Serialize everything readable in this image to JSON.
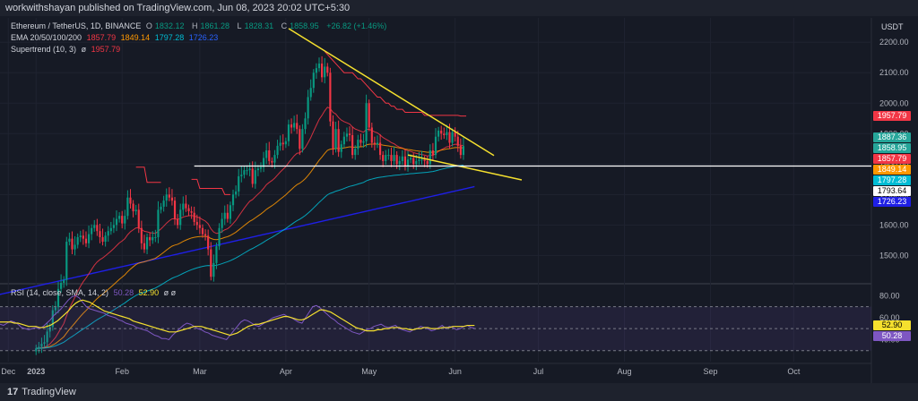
{
  "header": {
    "published": "workwithshayan published on TradingView.com, Jun 08, 2023 20:02 UTC+5:30"
  },
  "currency": "USDT",
  "legend": {
    "symbol": "Ethereum / TetherUS, 1D, BINANCE",
    "o_label": "O",
    "o_val": "1832.12",
    "h_label": "H",
    "h_val": "1861.28",
    "l_label": "L",
    "l_val": "1828.31",
    "c_label": "C",
    "c_val": "1858.95",
    "change": "+26.82 (+1.46%)",
    "ema_title": "EMA 20/50/100/200",
    "ema_vals": [
      "1857.79",
      "1849.14",
      "1797.28",
      "1726.23"
    ],
    "st_title": "Supertrend (10, 3)",
    "st_sym": "ø",
    "st_val": "1957.79"
  },
  "rsi_legend": {
    "title": "RSI (14, close, SMA, 14, 2)",
    "rsi": "50.28",
    "sma": "52.90",
    "extra": "ø ø"
  },
  "price_tags": [
    {
      "text": "1957.79",
      "bg": "#f23645",
      "fg": "#ffffff",
      "price": 1957.79
    },
    {
      "text": "1887.36",
      "bg": "#26a69a",
      "fg": "#ffffff",
      "price": 1887.36
    },
    {
      "text": "1858.95",
      "bg": "#26a69a",
      "fg": "#ffffff",
      "price": 1858.95
    },
    {
      "text": "1857.79",
      "bg": "#f23645",
      "fg": "#ffffff",
      "price": 1857.79
    },
    {
      "text": "1849.14",
      "bg": "#ff9800",
      "fg": "#ffffff",
      "price": 1849.14
    },
    {
      "text": "1797.28",
      "bg": "#00bcd4",
      "fg": "#ffffff",
      "price": 1797.28
    },
    {
      "text": "1793.64",
      "bg": "#ffffff",
      "fg": "#000000",
      "price": 1793.64
    },
    {
      "text": "1726.23",
      "bg": "#1f1fe6",
      "fg": "#ffffff",
      "price": 1726.23
    }
  ],
  "rsi_tags": [
    {
      "text": "52.90",
      "bg": "#f5e02e",
      "fg": "#000000",
      "value": 52.9
    },
    {
      "text": "50.28",
      "bg": "#7e57c2",
      "fg": "#ffffff",
      "value": 50.28
    }
  ],
  "footer": {
    "logo": "TradingView",
    "mark": "17"
  },
  "chart_data": {
    "type": "candlestick",
    "symbol": "ETH/USDT",
    "interval": "1D",
    "y_ticks": [
      1500,
      1600,
      1700,
      1800,
      1900,
      2000,
      2100,
      2200
    ],
    "y_tick_labels": [
      "1500.00",
      "1600.00",
      "1700.00",
      "1800.00",
      "1900.00",
      "2000.00",
      "2100.00",
      "2200.00"
    ],
    "ylim": [
      1410,
      2280
    ],
    "x_tick_labels": [
      {
        "label": "Dec",
        "day": -10
      },
      {
        "label": "2023",
        "day": 0
      },
      {
        "label": "Feb",
        "day": 31
      },
      {
        "label": "Mar",
        "day": 59
      },
      {
        "label": "Apr",
        "day": 90
      },
      {
        "label": "May",
        "day": 120
      },
      {
        "label": "Jun",
        "day": 151
      },
      {
        "label": "Jul",
        "day": 181
      },
      {
        "label": "Aug",
        "day": 212
      },
      {
        "label": "Sep",
        "day": 243
      },
      {
        "label": "Oct",
        "day": 273
      }
    ],
    "xlim_days": [
      -13,
      301
    ],
    "closes": [
      1195,
      1200,
      1210,
      1215,
      1250,
      1265,
      1320,
      1330,
      1390,
      1410,
      1420,
      1545,
      1555,
      1520,
      1535,
      1560,
      1565,
      1555,
      1540,
      1570,
      1590,
      1600,
      1580,
      1560,
      1545,
      1565,
      1580,
      1590,
      1600,
      1620,
      1630,
      1605,
      1630,
      1690,
      1670,
      1645,
      1650,
      1590,
      1540,
      1520,
      1560,
      1550,
      1560,
      1560,
      1650,
      1660,
      1680,
      1700,
      1690,
      1680,
      1620,
      1600,
      1650,
      1670,
      1655,
      1645,
      1640,
      1610,
      1600,
      1590,
      1570,
      1565,
      1520,
      1430,
      1475,
      1530,
      1590,
      1620,
      1640,
      1620,
      1665,
      1700,
      1710,
      1760,
      1765,
      1780,
      1780,
      1785,
      1735,
      1780,
      1785,
      1790,
      1820,
      1845,
      1810,
      1805,
      1830,
      1860,
      1870,
      1865,
      1875,
      1930,
      1920,
      1935,
      1915,
      1850,
      1915,
      1950,
      2020,
      2050,
      2100,
      2115,
      2130,
      2085,
      2120,
      2100,
      1940,
      1850,
      1915,
      1840,
      1865,
      1890,
      1900,
      1895,
      1830,
      1850,
      1880,
      1870,
      1875,
      2000,
      1920,
      1870,
      1865,
      1870,
      1830,
      1810,
      1830,
      1830,
      1810,
      1830,
      1800,
      1810,
      1825,
      1795,
      1815,
      1820,
      1800,
      1810,
      1815,
      1815,
      1810,
      1800,
      1845,
      1830,
      1890,
      1910,
      1900,
      1895,
      1905,
      1870,
      1905,
      1890,
      1860,
      1830,
      1858.95
    ],
    "ema200": [
      1370,
      1372,
      1374,
      1376,
      1378,
      1380,
      1382,
      1384,
      1386,
      1388,
      1390,
      1392,
      1394,
      1396,
      1398,
      1400,
      1402,
      1404,
      1406,
      1408,
      1410,
      1412,
      1414,
      1416,
      1418,
      1420,
      1422,
      1424,
      1426,
      1428,
      1430,
      1432,
      1434,
      1436,
      1438,
      1440,
      1442,
      1444,
      1446,
      1448,
      1450,
      1452,
      1454,
      1456,
      1458,
      1460,
      1462,
      1464,
      1466,
      1468,
      1470,
      1472,
      1474,
      1476,
      1478,
      1480,
      1482,
      1484,
      1486,
      1488,
      1490,
      1492,
      1494,
      1496,
      1498,
      1500,
      1502,
      1504,
      1506,
      1508,
      1510,
      1512,
      1514,
      1516,
      1518,
      1520,
      1522,
      1524,
      1526,
      1528,
      1530,
      1532,
      1534,
      1536,
      1538,
      1540,
      1542,
      1544,
      1546,
      1548,
      1550,
      1552,
      1554,
      1556,
      1558,
      1560,
      1562,
      1564,
      1566,
      1568,
      1570,
      1572,
      1574,
      1576,
      1578,
      1580,
      1582,
      1584,
      1586,
      1588,
      1590,
      1592,
      1594,
      1596,
      1598,
      1600,
      1602,
      1604,
      1606,
      1608,
      1610,
      1612,
      1614,
      1616,
      1618,
      1620,
      1622,
      1624,
      1626,
      1628,
      1630,
      1632,
      1634,
      1636,
      1638,
      1640,
      1642,
      1644,
      1646,
      1648,
      1650,
      1652,
      1654,
      1656,
      1658,
      1660,
      1662,
      1664,
      1666,
      1668,
      1670,
      1672,
      1674,
      1676,
      1678,
      1680,
      1682,
      1684,
      1686,
      1688,
      1690,
      1692,
      1694,
      1696,
      1698,
      1700,
      1702,
      1704,
      1706,
      1708,
      1710,
      1712,
      1714,
      1716,
      1718,
      1720,
      1722,
      1724,
      1726.23
    ],
    "ema200_start_day": -14,
    "supertrend_segments": [
      {
        "start_day": 36,
        "end_day": 45,
        "color": "red",
        "values": [
          1790,
          1790,
          1790,
          1790,
          1740,
          1740,
          1740,
          1740,
          1740,
          1740
        ]
      },
      {
        "start_day": 56,
        "end_day": 70,
        "color": "red",
        "values": [
          1750,
          1750,
          1750,
          1720,
          1720,
          1720,
          1720,
          1720,
          1720,
          1720,
          1720,
          1720,
          1700,
          1700,
          1700
        ]
      },
      {
        "start_day": 104,
        "end_day": 155,
        "color": "red",
        "values": [
          2170,
          2160,
          2150,
          2140,
          2130,
          2120,
          2110,
          2100,
          2100,
          2100,
          2100,
          2090,
          2080,
          2080,
          2070,
          2060,
          2050,
          2040,
          2030,
          2020,
          2020,
          2010,
          2000,
          2000,
          1990,
          1990,
          1980,
          1980,
          1980,
          1970,
          1970,
          1970,
          1970,
          1970,
          1970,
          1970,
          1960,
          1960,
          1960,
          1960,
          1960,
          1960,
          1960,
          1960,
          1960,
          1960,
          1960,
          1960,
          1960,
          1957.79,
          1957.79,
          1957.79
        ]
      }
    ],
    "annotations": [
      {
        "type": "trendline",
        "color": "#f5e02e",
        "from": {
          "day": 91,
          "price": 2245
        },
        "to": {
          "day": 165,
          "price": 1828
        }
      },
      {
        "type": "trendline",
        "color": "#f5e02e",
        "from": {
          "day": 134,
          "price": 1830
        },
        "to": {
          "day": 175,
          "price": 1748
        }
      },
      {
        "type": "hline",
        "color": "#ffffff",
        "price": 1793.64
      }
    ],
    "rsi": {
      "ylim": [
        20,
        90
      ],
      "ticks": [
        40,
        60,
        80
      ],
      "tick_labels": [
        "40.00",
        "60.00",
        "80.00"
      ],
      "overbought": 70,
      "oversold": 30,
      "middle": 50,
      "values": [
        54,
        53,
        55,
        57,
        56,
        54,
        51,
        50,
        49,
        50,
        51,
        50,
        52,
        55,
        58,
        62,
        65,
        68,
        72,
        76,
        79,
        80,
        78,
        74,
        70,
        68,
        67,
        66,
        65,
        64,
        62,
        61,
        60,
        58,
        57,
        55,
        54,
        53,
        51,
        50,
        49,
        48,
        46,
        44,
        43,
        41,
        41,
        40,
        44,
        47,
        50,
        53,
        55,
        54,
        52,
        50,
        49,
        47,
        46,
        44,
        43,
        42,
        41,
        40,
        44,
        48,
        52,
        56,
        58,
        57,
        55,
        53,
        52,
        54,
        56,
        58,
        60,
        61,
        62,
        63,
        61,
        60,
        58,
        56,
        55,
        60,
        65,
        70,
        71,
        69,
        66,
        63,
        60,
        58,
        55,
        53,
        51,
        49,
        47,
        46,
        45,
        47,
        49,
        50,
        52,
        53,
        54,
        52,
        51,
        52,
        53,
        50,
        49,
        48,
        47,
        49,
        50,
        52,
        51,
        50,
        48,
        49,
        51,
        53,
        50,
        52,
        51,
        49,
        50,
        52,
        53,
        51,
        50.28
      ],
      "sma": [
        56,
        56,
        56,
        56,
        55,
        55,
        54,
        53,
        52,
        52,
        52,
        51,
        51,
        52,
        53,
        55,
        57,
        60,
        63,
        66,
        70,
        73,
        75,
        76,
        75,
        74,
        72,
        70,
        68,
        66,
        65,
        64,
        63,
        62,
        61,
        60,
        59,
        57,
        56,
        55,
        54,
        53,
        52,
        51,
        50,
        49,
        48,
        47,
        47,
        47,
        48,
        49,
        50,
        51,
        52,
        52,
        52,
        51,
        50,
        49,
        48,
        47,
        46,
        45,
        44,
        45,
        46,
        48,
        50,
        52,
        53,
        54,
        54,
        55,
        56,
        57,
        58,
        59,
        60,
        61,
        61,
        60,
        59,
        58,
        58,
        59,
        61,
        63,
        65,
        67,
        67,
        66,
        65,
        63,
        61,
        59,
        57,
        55,
        53,
        51,
        50,
        49,
        48,
        48,
        48,
        49,
        49,
        50,
        50,
        51,
        51,
        51,
        50,
        50,
        49,
        49,
        50,
        50,
        51,
        51,
        50,
        50,
        50,
        51,
        51,
        51,
        52,
        52,
        52,
        52,
        52.9,
        52.9,
        52.9
      ]
    }
  }
}
